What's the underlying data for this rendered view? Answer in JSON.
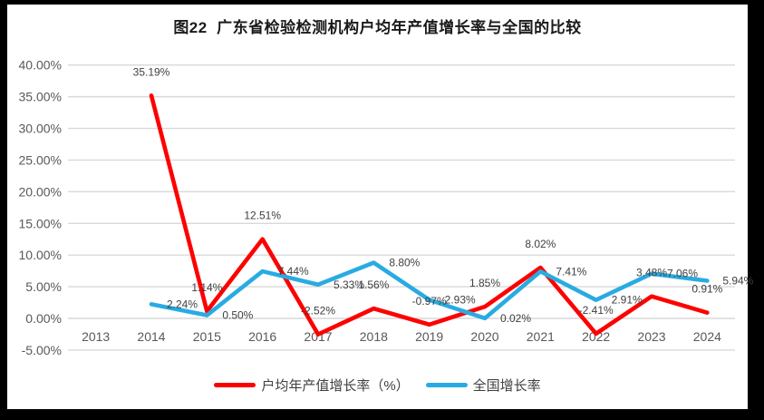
{
  "title": "图22  广东省检验检测机构户均年产值增长率与全国的比较",
  "colors": {
    "frame_background": "#000000",
    "panel_background": "#ffffff",
    "grid": "#d9d9d9",
    "axis_text": "#595959",
    "label_text": "#3f3f3f",
    "series_red": "#ff0000",
    "series_blue": "#29abe2"
  },
  "chart_data": {
    "type": "line",
    "title": "图22  广东省检验检测机构户均年产值增长率与全国的比较",
    "categories": [
      "2013",
      "2014",
      "2015",
      "2016",
      "2017",
      "2018",
      "2019",
      "2020",
      "2021",
      "2022",
      "2023",
      "2024"
    ],
    "series": [
      {
        "name": "户均年产值增长率（%）",
        "color": "#ff0000",
        "values": [
          null,
          35.19,
          1.14,
          12.51,
          -2.52,
          1.56,
          -0.97,
          1.85,
          8.02,
          -2.41,
          3.48,
          0.91
        ],
        "labels": [
          null,
          "35.19%",
          "1.14%",
          "12.51%",
          "-2.52%",
          "1.56%",
          "-0.97%",
          "1.85%",
          "8.02%",
          "-2.41%",
          "3.48%",
          "0.91%"
        ]
      },
      {
        "name": "全国增长率",
        "color": "#29abe2",
        "values": [
          null,
          2.24,
          0.5,
          7.44,
          5.33,
          8.8,
          2.93,
          0.02,
          7.41,
          2.91,
          7.06,
          5.94
        ],
        "labels": [
          null,
          "2.24%",
          "0.50%",
          "7.44%",
          "5.33%",
          "8.80%",
          "2.93%",
          "0.02%",
          "7.41%",
          "2.91%",
          "7.06%",
          "5.94%"
        ]
      }
    ],
    "y_axis": {
      "min": -5,
      "max": 40,
      "step": 5,
      "ticks": [
        "40.00%",
        "35.00%",
        "30.00%",
        "25.00%",
        "20.00%",
        "15.00%",
        "10.00%",
        "5.00%",
        "0.00%",
        "-5.00%"
      ]
    },
    "grid": "horizontal",
    "legend_position": "bottom"
  }
}
